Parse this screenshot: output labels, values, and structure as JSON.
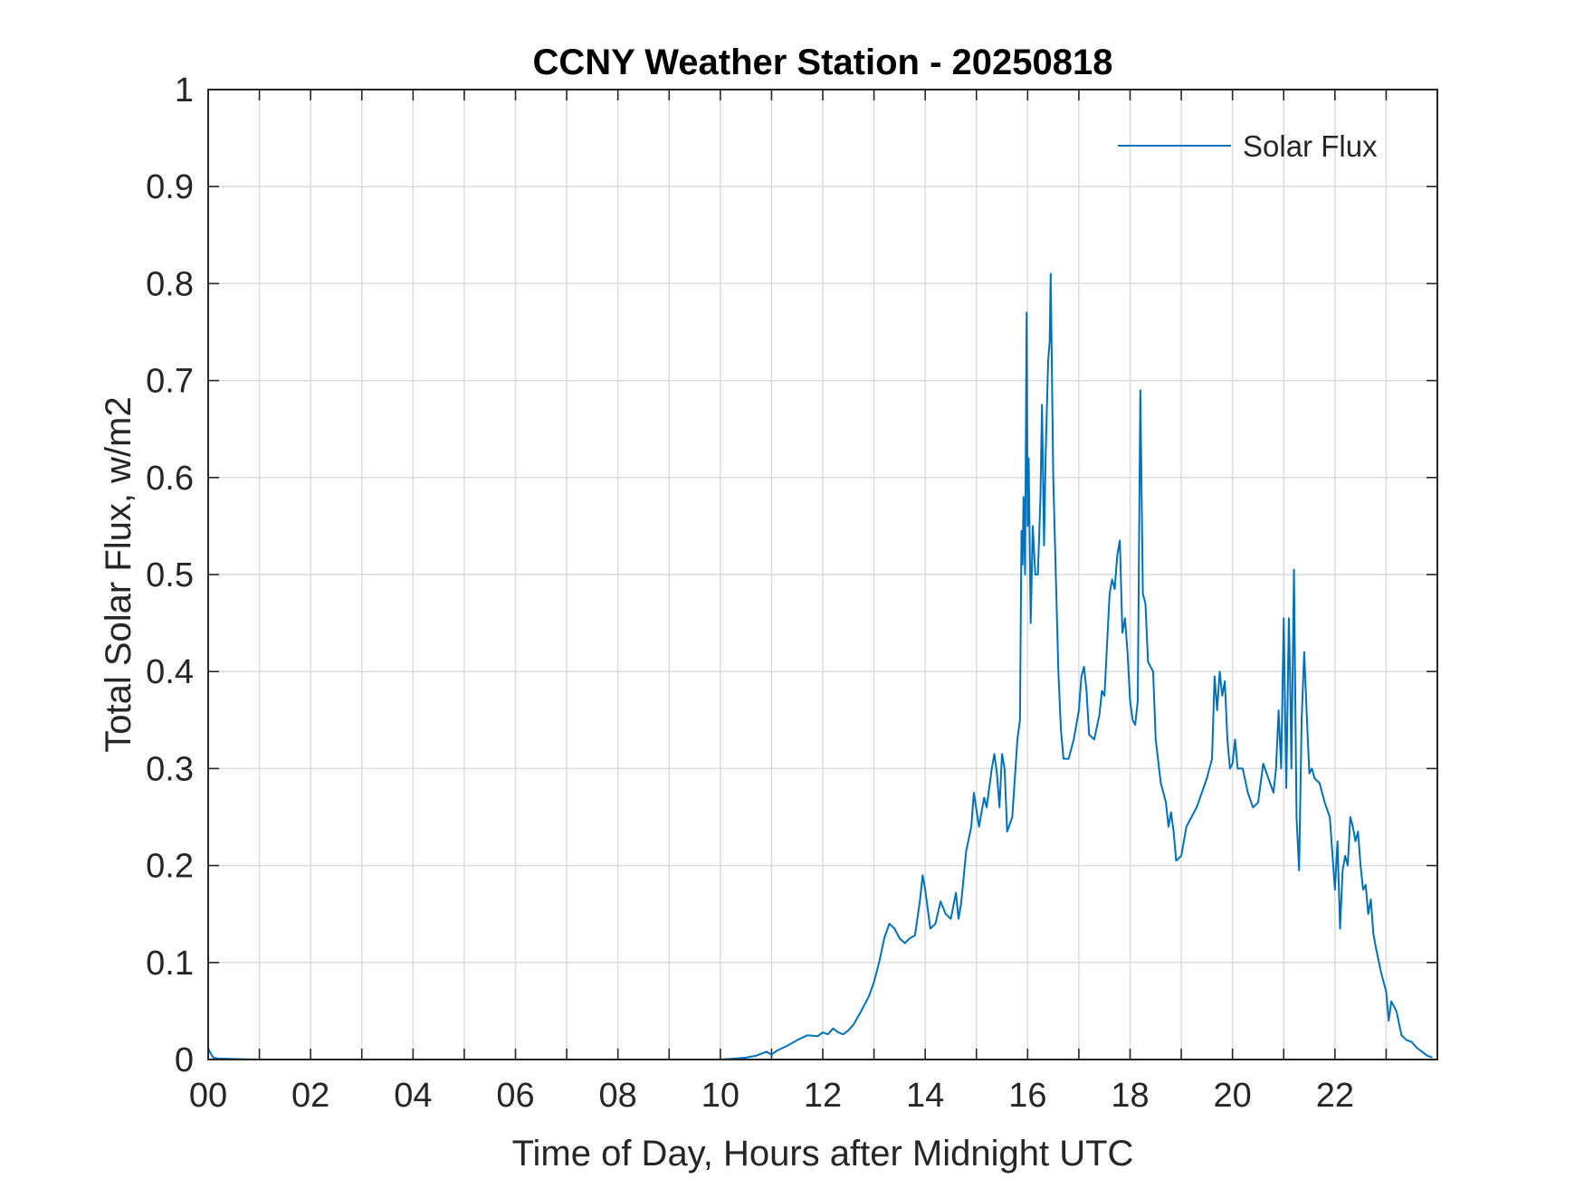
{
  "chart_data": {
    "type": "line",
    "title": "CCNY Weather Station - 20250818",
    "xlabel": "Time of Day, Hours after Midnight UTC",
    "ylabel": "Total Solar Flux, w/m2",
    "xlim": [
      0,
      24
    ],
    "ylim": [
      0,
      1
    ],
    "grid": true,
    "legend_position": "top-right",
    "x_ticks": [
      0,
      2,
      4,
      6,
      8,
      10,
      12,
      14,
      16,
      18,
      20,
      22
    ],
    "x_tick_labels": [
      "00",
      "02",
      "04",
      "06",
      "08",
      "10",
      "12",
      "14",
      "16",
      "18",
      "20",
      "22"
    ],
    "y_ticks": [
      0,
      0.1,
      0.2,
      0.3,
      0.4,
      0.5,
      0.6,
      0.7,
      0.8,
      0.9,
      1
    ],
    "y_tick_labels": [
      "0",
      "0.1",
      "0.2",
      "0.3",
      "0.4",
      "0.5",
      "0.6",
      "0.7",
      "0.8",
      "0.9",
      "1"
    ],
    "series": [
      {
        "name": "Solar Flux",
        "color": "#0072BD",
        "points": [
          [
            0.0,
            0.012
          ],
          [
            0.05,
            0.006
          ],
          [
            0.1,
            0.002
          ],
          [
            0.2,
            0.001
          ],
          [
            1.0,
            0.0
          ],
          [
            5.0,
            0.0
          ],
          [
            9.0,
            0.0
          ],
          [
            10.0,
            0.0
          ],
          [
            10.3,
            0.001
          ],
          [
            10.5,
            0.002
          ],
          [
            10.7,
            0.004
          ],
          [
            10.9,
            0.008
          ],
          [
            11.0,
            0.005
          ],
          [
            11.1,
            0.009
          ],
          [
            11.3,
            0.014
          ],
          [
            11.5,
            0.02
          ],
          [
            11.7,
            0.025
          ],
          [
            11.9,
            0.024
          ],
          [
            12.0,
            0.028
          ],
          [
            12.1,
            0.026
          ],
          [
            12.2,
            0.032
          ],
          [
            12.3,
            0.028
          ],
          [
            12.4,
            0.026
          ],
          [
            12.5,
            0.03
          ],
          [
            12.6,
            0.036
          ],
          [
            12.75,
            0.05
          ],
          [
            12.9,
            0.065
          ],
          [
            13.0,
            0.08
          ],
          [
            13.1,
            0.1
          ],
          [
            13.2,
            0.125
          ],
          [
            13.3,
            0.14
          ],
          [
            13.4,
            0.135
          ],
          [
            13.5,
            0.125
          ],
          [
            13.6,
            0.12
          ],
          [
            13.7,
            0.125
          ],
          [
            13.8,
            0.128
          ],
          [
            13.9,
            0.165
          ],
          [
            13.95,
            0.19
          ],
          [
            14.0,
            0.175
          ],
          [
            14.1,
            0.135
          ],
          [
            14.2,
            0.14
          ],
          [
            14.3,
            0.163
          ],
          [
            14.4,
            0.15
          ],
          [
            14.5,
            0.145
          ],
          [
            14.6,
            0.172
          ],
          [
            14.65,
            0.145
          ],
          [
            14.7,
            0.16
          ],
          [
            14.8,
            0.215
          ],
          [
            14.9,
            0.24
          ],
          [
            14.95,
            0.275
          ],
          [
            15.05,
            0.24
          ],
          [
            15.15,
            0.27
          ],
          [
            15.2,
            0.26
          ],
          [
            15.3,
            0.3
          ],
          [
            15.35,
            0.315
          ],
          [
            15.4,
            0.295
          ],
          [
            15.45,
            0.26
          ],
          [
            15.5,
            0.315
          ],
          [
            15.55,
            0.3
          ],
          [
            15.6,
            0.235
          ],
          [
            15.7,
            0.25
          ],
          [
            15.8,
            0.33
          ],
          [
            15.85,
            0.35
          ],
          [
            15.88,
            0.545
          ],
          [
            15.9,
            0.51
          ],
          [
            15.92,
            0.58
          ],
          [
            15.95,
            0.5
          ],
          [
            15.98,
            0.77
          ],
          [
            16.0,
            0.55
          ],
          [
            16.02,
            0.62
          ],
          [
            16.06,
            0.45
          ],
          [
            16.1,
            0.55
          ],
          [
            16.15,
            0.5
          ],
          [
            16.2,
            0.5
          ],
          [
            16.25,
            0.58
          ],
          [
            16.28,
            0.675
          ],
          [
            16.32,
            0.53
          ],
          [
            16.35,
            0.62
          ],
          [
            16.4,
            0.72
          ],
          [
            16.43,
            0.74
          ],
          [
            16.45,
            0.81
          ],
          [
            16.5,
            0.6
          ],
          [
            16.55,
            0.5
          ],
          [
            16.6,
            0.4
          ],
          [
            16.65,
            0.34
          ],
          [
            16.7,
            0.31
          ],
          [
            16.8,
            0.31
          ],
          [
            16.9,
            0.33
          ],
          [
            17.0,
            0.36
          ],
          [
            17.05,
            0.395
          ],
          [
            17.1,
            0.405
          ],
          [
            17.15,
            0.38
          ],
          [
            17.2,
            0.335
          ],
          [
            17.3,
            0.33
          ],
          [
            17.4,
            0.355
          ],
          [
            17.45,
            0.38
          ],
          [
            17.5,
            0.375
          ],
          [
            17.6,
            0.48
          ],
          [
            17.65,
            0.495
          ],
          [
            17.7,
            0.485
          ],
          [
            17.75,
            0.52
          ],
          [
            17.8,
            0.535
          ],
          [
            17.85,
            0.44
          ],
          [
            17.9,
            0.455
          ],
          [
            17.95,
            0.42
          ],
          [
            18.0,
            0.37
          ],
          [
            18.05,
            0.35
          ],
          [
            18.1,
            0.345
          ],
          [
            18.15,
            0.37
          ],
          [
            18.2,
            0.69
          ],
          [
            18.25,
            0.48
          ],
          [
            18.3,
            0.47
          ],
          [
            18.35,
            0.41
          ],
          [
            18.4,
            0.405
          ],
          [
            18.45,
            0.4
          ],
          [
            18.5,
            0.33
          ],
          [
            18.6,
            0.285
          ],
          [
            18.7,
            0.265
          ],
          [
            18.75,
            0.24
          ],
          [
            18.8,
            0.255
          ],
          [
            18.85,
            0.235
          ],
          [
            18.9,
            0.205
          ],
          [
            19.0,
            0.21
          ],
          [
            19.05,
            0.225
          ],
          [
            19.1,
            0.24
          ],
          [
            19.2,
            0.25
          ],
          [
            19.3,
            0.26
          ],
          [
            19.4,
            0.275
          ],
          [
            19.5,
            0.29
          ],
          [
            19.6,
            0.31
          ],
          [
            19.65,
            0.395
          ],
          [
            19.7,
            0.36
          ],
          [
            19.75,
            0.4
          ],
          [
            19.8,
            0.375
          ],
          [
            19.85,
            0.39
          ],
          [
            19.9,
            0.33
          ],
          [
            19.95,
            0.3
          ],
          [
            20.0,
            0.305
          ],
          [
            20.05,
            0.33
          ],
          [
            20.1,
            0.3
          ],
          [
            20.2,
            0.3
          ],
          [
            20.3,
            0.275
          ],
          [
            20.4,
            0.26
          ],
          [
            20.5,
            0.265
          ],
          [
            20.6,
            0.305
          ],
          [
            20.7,
            0.29
          ],
          [
            20.8,
            0.275
          ],
          [
            20.85,
            0.3
          ],
          [
            20.9,
            0.36
          ],
          [
            20.95,
            0.3
          ],
          [
            21.0,
            0.455
          ],
          [
            21.05,
            0.28
          ],
          [
            21.1,
            0.455
          ],
          [
            21.12,
            0.41
          ],
          [
            21.15,
            0.3
          ],
          [
            21.2,
            0.505
          ],
          [
            21.25,
            0.25
          ],
          [
            21.3,
            0.195
          ],
          [
            21.35,
            0.35
          ],
          [
            21.4,
            0.42
          ],
          [
            21.45,
            0.355
          ],
          [
            21.5,
            0.295
          ],
          [
            21.55,
            0.3
          ],
          [
            21.6,
            0.29
          ],
          [
            21.7,
            0.285
          ],
          [
            21.8,
            0.265
          ],
          [
            21.9,
            0.25
          ],
          [
            22.0,
            0.175
          ],
          [
            22.05,
            0.225
          ],
          [
            22.1,
            0.135
          ],
          [
            22.15,
            0.195
          ],
          [
            22.2,
            0.21
          ],
          [
            22.25,
            0.2
          ],
          [
            22.3,
            0.25
          ],
          [
            22.35,
            0.24
          ],
          [
            22.4,
            0.225
          ],
          [
            22.45,
            0.235
          ],
          [
            22.5,
            0.2
          ],
          [
            22.55,
            0.175
          ],
          [
            22.6,
            0.18
          ],
          [
            22.65,
            0.15
          ],
          [
            22.7,
            0.165
          ],
          [
            22.75,
            0.13
          ],
          [
            22.8,
            0.115
          ],
          [
            22.9,
            0.09
          ],
          [
            23.0,
            0.07
          ],
          [
            23.05,
            0.04
          ],
          [
            23.1,
            0.06
          ],
          [
            23.2,
            0.05
          ],
          [
            23.3,
            0.025
          ],
          [
            23.4,
            0.02
          ],
          [
            23.5,
            0.018
          ],
          [
            23.6,
            0.012
          ],
          [
            23.7,
            0.008
          ],
          [
            23.8,
            0.004
          ],
          [
            23.9,
            0.002
          ]
        ]
      }
    ]
  }
}
